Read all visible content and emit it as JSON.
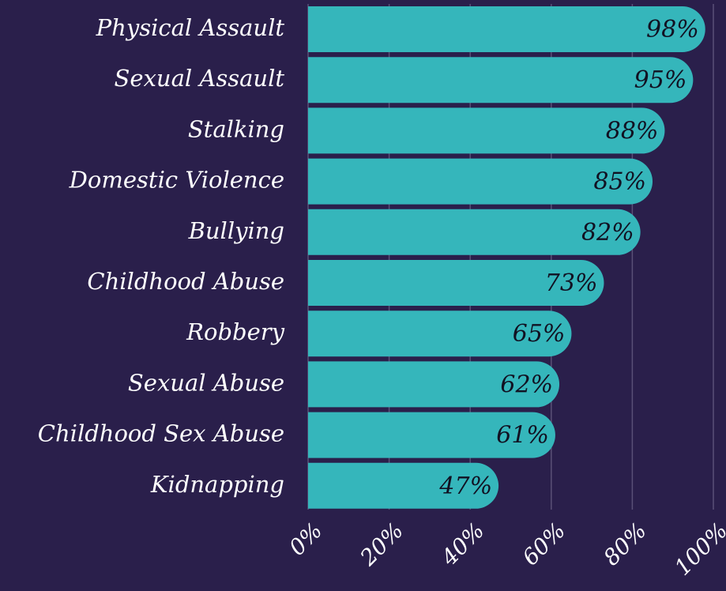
{
  "chart_data": {
    "type": "bar",
    "orientation": "horizontal",
    "categories": [
      "Physical Assault",
      "Sexual Assault",
      "Stalking",
      "Domestic Violence",
      "Bullying",
      "Childhood Abuse",
      "Robbery",
      "Sexual Abuse",
      "Childhood Sex Abuse",
      "Kidnapping"
    ],
    "values": [
      98,
      95,
      88,
      85,
      82,
      73,
      65,
      62,
      61,
      47
    ],
    "value_labels": [
      "98%",
      "95%",
      "88%",
      "85%",
      "82%",
      "73%",
      "65%",
      "62%",
      "61%",
      "47%"
    ],
    "color": "#35b6bb",
    "xlim": [
      0,
      100
    ],
    "xticks": [
      {
        "value": 0,
        "label": "0%"
      },
      {
        "value": 20,
        "label": "20%"
      },
      {
        "value": 40,
        "label": "40%"
      },
      {
        "value": 60,
        "label": "60%"
      },
      {
        "value": 80,
        "label": "80%"
      },
      {
        "value": 100,
        "label": "100%"
      }
    ],
    "grid": true
  }
}
